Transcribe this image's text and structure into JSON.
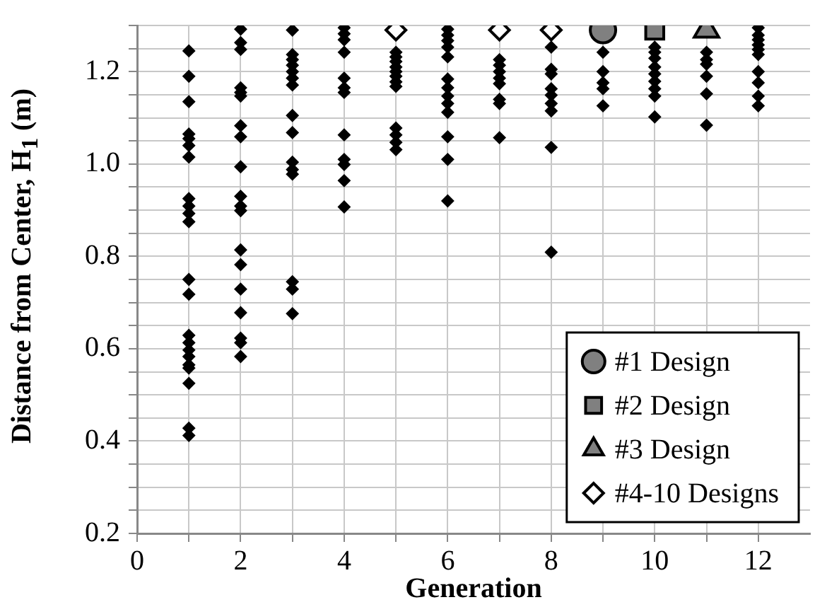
{
  "chart_data": {
    "type": "scatter",
    "xlabel": "Generation",
    "ylabel": "Distance from Center, H$_{1}$ (m)",
    "xlim": [
      0,
      13
    ],
    "xticks": [
      0,
      {
        "value": 1,
        "label": null
      },
      2,
      {
        "value": 3,
        "label": null
      },
      4,
      {
        "value": 5,
        "label": null
      },
      6,
      {
        "value": 7,
        "label": null
      },
      8,
      {
        "value": 9,
        "label": null
      },
      10,
      {
        "value": 11,
        "label": null
      },
      12
    ],
    "ylim": [
      0.2,
      1.3
    ],
    "yticks": [
      0.2,
      {
        "value": 0.25,
        "label": null
      },
      {
        "value": 0.3,
        "label": null
      },
      {
        "value": 0.35,
        "label": null
      },
      0.4,
      {
        "value": 0.45,
        "label": null
      },
      {
        "value": 0.5,
        "label": null
      },
      {
        "value": 0.55,
        "label": null
      },
      0.6,
      {
        "value": 0.65,
        "label": null
      },
      {
        "value": 0.7,
        "label": null
      },
      {
        "value": 0.75,
        "label": null
      },
      0.8,
      {
        "value": 0.85,
        "label": null
      },
      {
        "value": 0.9,
        "label": null
      },
      {
        "value": 0.95,
        "label": null
      },
      {
        "value": 1.0,
        "label": "1.0"
      },
      {
        "value": 1.05,
        "label": null
      },
      {
        "value": 1.1,
        "label": null
      },
      {
        "value": 1.15,
        "label": null
      },
      1.2,
      {
        "value": 1.25,
        "label": null
      },
      {
        "value": 1.3,
        "label": null
      }
    ],
    "grid": true,
    "legend": "bottom right",
    "series": [
      {
        "color": "#000000",
        "marker": "diamond",
        "x": [
          1,
          1,
          1,
          1,
          1,
          1,
          1,
          1,
          1,
          1,
          1,
          1,
          1,
          1,
          1,
          1,
          1,
          1,
          1,
          1,
          1,
          1,
          2,
          2,
          2,
          2,
          2,
          2,
          2,
          2,
          2,
          2,
          2,
          2,
          2,
          2,
          2,
          2,
          2,
          2,
          2,
          3,
          3,
          3,
          3,
          3,
          3,
          3,
          3,
          3,
          3,
          3,
          3,
          3,
          3,
          3,
          4,
          4,
          4,
          4,
          4,
          4,
          4,
          4,
          4,
          4,
          4,
          4,
          5,
          5,
          5,
          5,
          5,
          5,
          5,
          5,
          5,
          5,
          5,
          5,
          6,
          6,
          6,
          6,
          6,
          6,
          6,
          6,
          6,
          6,
          6,
          6,
          6,
          7,
          7,
          7,
          7,
          7,
          7,
          7,
          7,
          8,
          8,
          8,
          8,
          8,
          8,
          8,
          8,
          8,
          9,
          9,
          9,
          9,
          9,
          10,
          10,
          10,
          10,
          10,
          10,
          10,
          10,
          10,
          11,
          11,
          11,
          11,
          11,
          11,
          12,
          12,
          12,
          12,
          12,
          12,
          12,
          12,
          12,
          12
        ],
        "values": [
          1.245,
          1.19,
          1.135,
          1.065,
          1.055,
          1.04,
          1.015,
          0.925,
          0.909,
          0.893,
          0.875,
          0.75,
          0.718,
          0.629,
          0.613,
          0.597,
          0.583,
          0.565,
          0.558,
          0.525,
          0.428,
          0.412,
          1.292,
          1.263,
          1.248,
          1.165,
          1.155,
          1.147,
          1.083,
          1.059,
          0.994,
          0.93,
          0.909,
          0.899,
          0.814,
          0.782,
          0.729,
          0.678,
          0.623,
          0.613,
          0.583,
          1.29,
          1.237,
          1.226,
          1.214,
          1.2,
          1.186,
          1.171,
          1.105,
          1.068,
          1.004,
          0.988,
          0.978,
          0.745,
          0.729,
          0.676,
          1.295,
          1.282,
          1.269,
          1.242,
          1.186,
          1.165,
          1.155,
          1.063,
          1.01,
          0.999,
          0.964,
          0.907,
          1.242,
          1.232,
          1.222,
          1.21,
          1.2,
          1.19,
          1.178,
          1.168,
          1.078,
          1.063,
          1.047,
          1.031,
          1.292,
          1.279,
          1.267,
          1.253,
          1.232,
          1.184,
          1.165,
          1.147,
          1.131,
          1.112,
          1.059,
          1.01,
          0.92,
          1.226,
          1.214,
          1.2,
          1.186,
          1.174,
          1.14,
          1.131,
          1.057,
          1.253,
          1.205,
          1.195,
          1.163,
          1.149,
          1.131,
          1.115,
          1.036,
          0.809,
          1.242,
          1.2,
          1.176,
          1.163,
          1.126,
          1.253,
          1.242,
          1.229,
          1.21,
          1.195,
          1.179,
          1.163,
          1.147,
          1.102,
          1.242,
          1.226,
          1.216,
          1.19,
          1.152,
          1.084,
          1.295,
          1.279,
          1.269,
          1.258,
          1.248,
          1.237,
          1.2,
          1.176,
          1.147,
          1.126
        ]
      },
      {
        "name": "#1 Design",
        "color": "#808080",
        "marker": "circle",
        "x": [
          9
        ],
        "values": [
          1.29
        ]
      },
      {
        "name": "#2 Design",
        "color": "#808080",
        "marker": "square",
        "x": [
          10
        ],
        "values": [
          1.29
        ]
      },
      {
        "name": "#3 Design",
        "color": "#808080",
        "marker": "triangle",
        "x": [
          11
        ],
        "values": [
          1.29
        ]
      },
      {
        "name": "#4-10 Designs",
        "color": "#ffffff",
        "marker": "diamond",
        "x": [
          5,
          7,
          8
        ],
        "values": [
          1.29,
          1.29,
          1.29
        ]
      }
    ]
  }
}
